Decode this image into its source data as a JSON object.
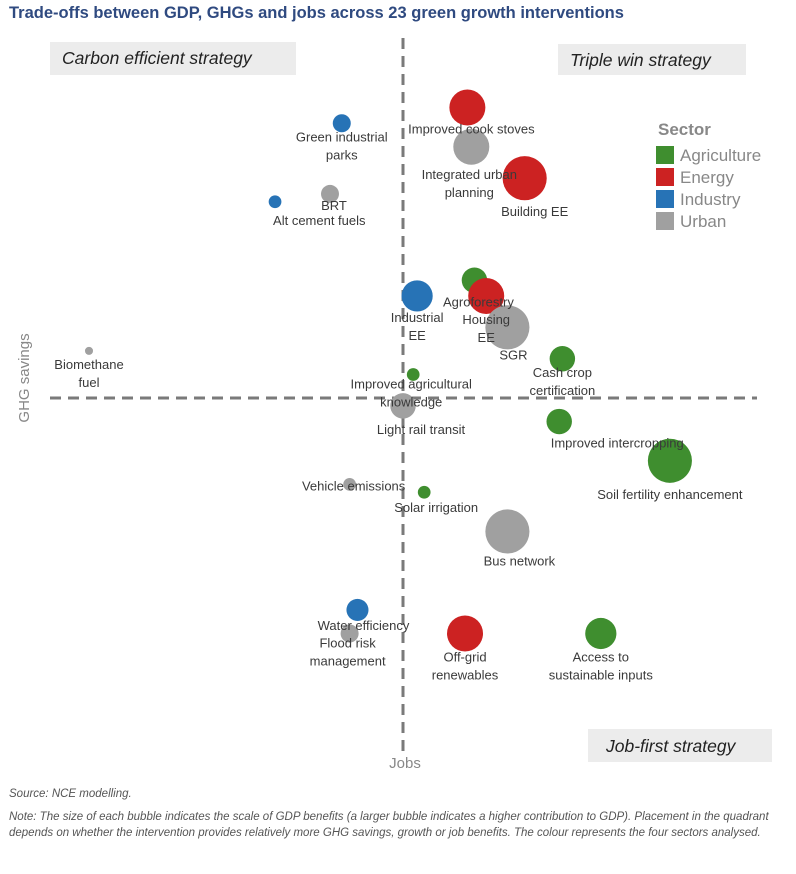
{
  "title": "Trade-offs between GDP, GHGs and jobs across 23 green growth interventions",
  "source": "Source: NCE modelling.",
  "note": "Note: The size of each bubble indicates the scale of GDP benefits (a larger bubble indicates a higher contribution to GDP). Placement in the quadrant depends on whether the intervention provides relatively more GHG savings, growth or job benefits. The colour represents the four sectors analysed.",
  "chart_data": {
    "type": "scatter",
    "xlabel": "Jobs",
    "ylabel": "GHG savings",
    "grid": false,
    "legend_position": "top-right",
    "quadrants": {
      "top_left": "Carbon efficient strategy",
      "top_right": "Triple win strategy",
      "bottom_right": "Job-first strategy"
    },
    "legend": {
      "title": "Sector",
      "entries": [
        {
          "name": "Agriculture",
          "color": "#3f8e2f"
        },
        {
          "name": "Energy",
          "color": "#cc2222"
        },
        {
          "name": "Industry",
          "color": "#2773b6"
        },
        {
          "name": "Urban",
          "color": "#a0a0a0"
        }
      ]
    },
    "points": [
      {
        "label": "Improved cook stoves",
        "sector": "Energy",
        "x": 0.82,
        "y": 3.7,
        "size": 4
      },
      {
        "label": "Green industrial parks",
        "sector": "Industry",
        "x": -0.78,
        "y": 3.5,
        "size": 1
      },
      {
        "label": "Integrated urban planning",
        "sector": "Urban",
        "x": 0.87,
        "y": 3.2,
        "size": 4
      },
      {
        "label": "Building EE",
        "sector": "Energy",
        "x": 1.55,
        "y": 2.8,
        "size": 6
      },
      {
        "label": "BRT",
        "sector": "Urban",
        "x": -0.93,
        "y": 2.6,
        "size": 1
      },
      {
        "label": "Alt cement fuels",
        "sector": "Industry",
        "x": -1.63,
        "y": 2.5,
        "size": 0.5
      },
      {
        "label": "Agroforestry",
        "sector": "Agriculture",
        "x": 0.91,
        "y": 1.5,
        "size": 2
      },
      {
        "label": "Industrial EE",
        "sector": "Industry",
        "x": 0.18,
        "y": 1.3,
        "size": 3
      },
      {
        "label": "Housing EE",
        "sector": "Energy",
        "x": 1.06,
        "y": 1.3,
        "size": 4
      },
      {
        "label": "SGR",
        "sector": "Urban",
        "x": 1.33,
        "y": 0.9,
        "size": 6
      },
      {
        "label": "Biomethane fuel",
        "sector": "Urban",
        "x": -4.0,
        "y": 0.6,
        "size": 0.2
      },
      {
        "label": "Cash crop certification",
        "sector": "Agriculture",
        "x": 2.03,
        "y": 0.5,
        "size": 2
      },
      {
        "label": "Improved agricultural knowledge",
        "sector": "Agriculture",
        "x": 0.13,
        "y": 0.3,
        "size": 0.5
      },
      {
        "label": "Light rail transit",
        "sector": "Urban",
        "x": 0.0,
        "y": -0.1,
        "size": 2
      },
      {
        "label": "Improved intercropping",
        "sector": "Agriculture",
        "x": 1.99,
        "y": -0.3,
        "size": 2
      },
      {
        "label": "Soil fertility enhancement",
        "sector": "Agriculture",
        "x": 3.4,
        "y": -0.8,
        "size": 6
      },
      {
        "label": "Vehicle emissions",
        "sector": "Urban",
        "x": -0.68,
        "y": -1.1,
        "size": 0.5
      },
      {
        "label": "Solar irrigation",
        "sector": "Agriculture",
        "x": 0.27,
        "y": -1.2,
        "size": 0.5
      },
      {
        "label": "Bus network",
        "sector": "Urban",
        "x": 1.33,
        "y": -1.7,
        "size": 6
      },
      {
        "label": "Water efficiency",
        "sector": "Industry",
        "x": -0.58,
        "y": -2.7,
        "size": 1.5
      },
      {
        "label": "Flood risk management",
        "sector": "Urban",
        "x": -0.68,
        "y": -3.0,
        "size": 1
      },
      {
        "label": "Off-grid renewables",
        "sector": "Energy",
        "x": 0.79,
        "y": -3.0,
        "size": 4
      },
      {
        "label": "Access to sustainable inputs",
        "sector": "Agriculture",
        "x": 2.52,
        "y": -3.0,
        "size": 3
      }
    ]
  }
}
